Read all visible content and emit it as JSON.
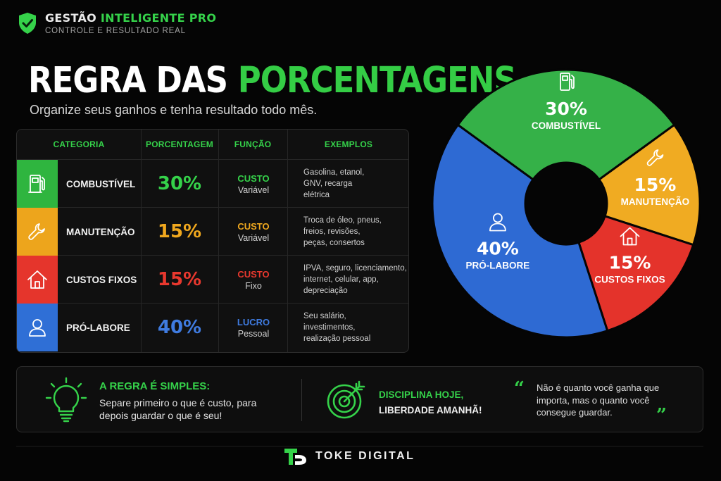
{
  "brand": {
    "title_part1": "GESTÃO ",
    "title_part2": "INTELIGENTE PRO",
    "subtitle": "CONTROLE E RESULTADO REAL"
  },
  "headline": {
    "part1": "REGRA DAS ",
    "part2": "PORCENTAGENS"
  },
  "subtitle": "Organize seus ganhos e tenha resultado todo mês.",
  "table": {
    "headers": [
      "CATEGORIA",
      "PORCENTAGEM",
      "FUNÇÃO",
      "EXEMPLOS"
    ],
    "rows": [
      {
        "icon": "fuel-pump-icon",
        "color": "#2fb53f",
        "category": "COMBUSTÍVEL",
        "percent": "30%",
        "function_type": "CUSTO",
        "function_kind": "Variável",
        "examples": [
          "Gasolina, etanol,",
          "GNV, recarga",
          "elétrica"
        ]
      },
      {
        "icon": "wrench-icon",
        "color": "#eda51c",
        "category": "MANUTENÇÃO",
        "percent": "15%",
        "function_type": "CUSTO",
        "function_kind": "Variável",
        "examples": [
          "Troca de óleo, pneus,",
          "freios, revisões,",
          "peças, consertos"
        ]
      },
      {
        "icon": "house-icon",
        "color": "#e5352c",
        "category": "CUSTOS FIXOS",
        "percent": "15%",
        "function_type": "CUSTO",
        "function_kind": "Fixo",
        "examples": [
          "IPVA, seguro, licenciamento,",
          "internet, celular, app,",
          "depreciação"
        ]
      },
      {
        "icon": "user-icon",
        "color": "#2f6fd6",
        "category": "PRÓ-LABORE",
        "percent": "40%",
        "function_type": "LUCRO",
        "function_kind": "Pessoal",
        "examples": [
          "Seu salário,",
          "investimentos,",
          "realização pessoal"
        ]
      }
    ]
  },
  "chart_data": {
    "type": "pie",
    "donut": true,
    "slices": [
      {
        "label": "COMBUSTÍVEL",
        "value": 30,
        "value_label": "30%",
        "color": "#35b148",
        "icon": "fuel-pump-icon"
      },
      {
        "label": "MANUTENÇÃO",
        "value": 15,
        "value_label": "15%",
        "color": "#f0ab22",
        "icon": "wrench-icon"
      },
      {
        "label": "CUSTOS FIXOS",
        "value": 15,
        "value_label": "15%",
        "color": "#e4332b",
        "icon": "house-icon"
      },
      {
        "label": "PRÓ-LABORE",
        "value": 40,
        "value_label": "40%",
        "color": "#2e6ad3",
        "icon": "user-icon"
      }
    ]
  },
  "bottom": {
    "rule_title": "A REGRA É SIMPLES:",
    "rule_text": "Separe primeiro o que é custo, para depois guardar o que é seu!",
    "discipline_line1": "DISCIPLINA HOJE,",
    "discipline_line2": "LIBERDADE AMANHÃ!",
    "quote": "Não é quanto você ganha que importa, mas o quanto você consegue guardar.",
    "quote_open": "“",
    "quote_close": "”"
  },
  "footer": {
    "name": "TOKE DIGITAL",
    "logo": "td-logo-icon"
  }
}
